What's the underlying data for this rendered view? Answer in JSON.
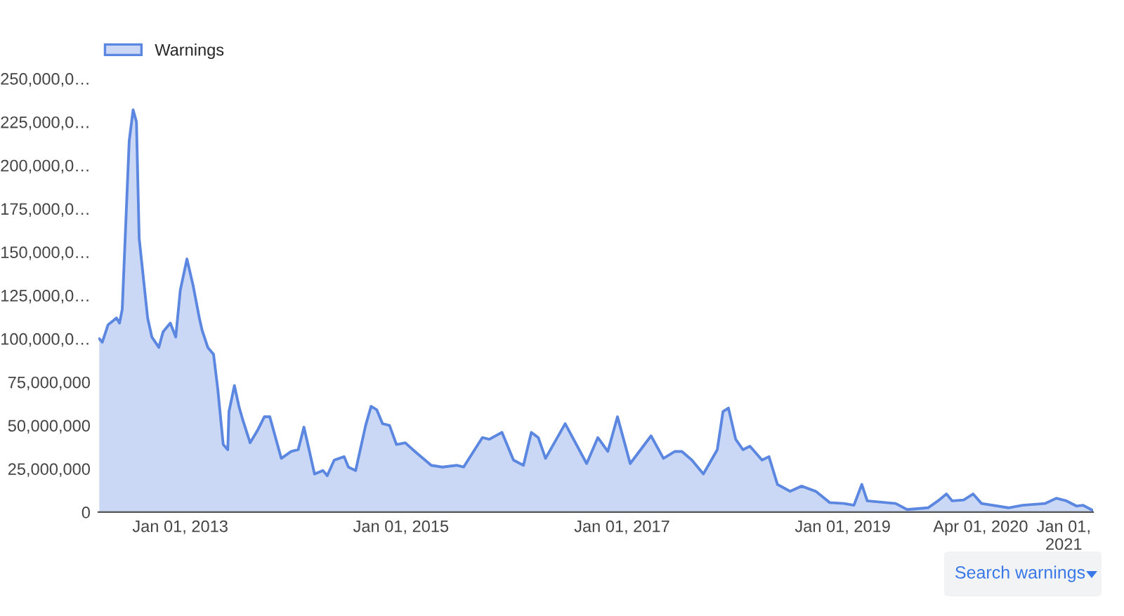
{
  "chart_data": {
    "type": "area",
    "x": [
      "2012-04-08",
      "2012-04-18",
      "2012-05-07",
      "2012-06-04",
      "2012-06-14",
      "2012-06-23",
      "2012-07-16",
      "2012-07-29",
      "2012-08-09",
      "2012-08-18",
      "2012-09-15",
      "2012-09-29",
      "2012-10-22",
      "2012-11-05",
      "2012-11-29",
      "2012-12-17",
      "2013-01-01",
      "2013-01-23",
      "2013-02-12",
      "2013-03-05",
      "2013-03-14",
      "2013-04-02",
      "2013-04-21",
      "2013-05-05",
      "2013-05-23",
      "2013-06-07",
      "2013-06-11",
      "2013-06-29",
      "2013-07-14",
      "2013-07-27",
      "2013-08-20",
      "2013-09-13",
      "2013-10-06",
      "2013-10-24",
      "2013-12-01",
      "2014-01-03",
      "2014-01-26",
      "2014-02-14",
      "2014-03-03",
      "2014-03-21",
      "2014-04-18",
      "2014-05-02",
      "2014-05-25",
      "2014-06-27",
      "2014-07-11",
      "2014-08-04",
      "2014-09-06",
      "2014-09-24",
      "2014-10-13",
      "2014-11-01",
      "2014-11-24",
      "2014-12-17",
      "2015-01-15",
      "2015-02-16",
      "2015-04-11",
      "2015-05-18",
      "2015-07-04",
      "2015-07-27",
      "2015-09-27",
      "2015-10-20",
      "2015-12-01",
      "2016-01-08",
      "2016-02-10",
      "2016-03-07",
      "2016-03-30",
      "2016-04-23",
      "2016-06-27",
      "2016-09-06",
      "2016-10-13",
      "2016-11-15",
      "2016-12-17",
      "2017-01-28",
      "2017-04-07",
      "2017-05-18",
      "2017-06-25",
      "2017-07-18",
      "2017-08-20",
      "2017-09-27",
      "2017-11-12",
      "2017-12-01",
      "2017-12-19",
      "2018-01-12",
      "2018-02-05",
      "2018-02-28",
      "2018-04-09",
      "2018-05-02",
      "2018-05-30",
      "2018-07-11",
      "2018-08-18",
      "2018-10-04",
      "2018-11-19",
      "2019-01-05",
      "2019-02-07",
      "2019-03-05",
      "2019-03-23",
      "2019-06-25",
      "2019-08-02",
      "2019-10-10",
      "2019-11-12",
      "2019-12-10",
      "2019-12-29",
      "2020-02-05",
      "2020-03-07",
      "2020-04-04",
      "2020-07-02",
      "2020-08-18",
      "2020-11-01",
      "2020-12-07",
      "2021-01-10",
      "2021-02-12",
      "2021-03-05",
      "2021-04-07"
    ],
    "series": [
      {
        "name": "Warnings",
        "color": "#5b87e0",
        "values": [
          100000000,
          98000000,
          108000000,
          112000000,
          109000000,
          117000000,
          214000000,
          232000000,
          225000000,
          158000000,
          112000000,
          101000000,
          95000000,
          104000000,
          109000000,
          101000000,
          128000000,
          146000000,
          131000000,
          112000000,
          105000000,
          95000000,
          91000000,
          71000000,
          39000000,
          36000000,
          58000000,
          73000000,
          61000000,
          53000000,
          40000000,
          47000000,
          55000000,
          55000000,
          31000000,
          35000000,
          36000000,
          49000000,
          36000000,
          22000000,
          24000000,
          21000000,
          30000000,
          32000000,
          26000000,
          24000000,
          50000000,
          61000000,
          59000000,
          51000000,
          50000000,
          39000000,
          40000000,
          35000000,
          27000000,
          26000000,
          27000000,
          26000000,
          43000000,
          42000000,
          46000000,
          30000000,
          27000000,
          46000000,
          43000000,
          31000000,
          51000000,
          28000000,
          43000000,
          35000000,
          55000000,
          28000000,
          44000000,
          31000000,
          35000000,
          35000000,
          30000000,
          22000000,
          36000000,
          58000000,
          60000000,
          42000000,
          36000000,
          38000000,
          30000000,
          32000000,
          16000000,
          12000000,
          15000000,
          12000000,
          5500000,
          5000000,
          4000000,
          16000000,
          6500000,
          5000000,
          1500000,
          2500000,
          6500000,
          10500000,
          6500000,
          7000000,
          10500000,
          5000000,
          2500000,
          4000000,
          5000000,
          8000000,
          6500000,
          3500000,
          4000000,
          1000000
        ]
      }
    ],
    "xlim": [
      "2012-04-05",
      "2021-04-08"
    ],
    "xticks": [
      {
        "value": "2013-01-01",
        "label": "Jan 01, 2013"
      },
      {
        "value": "2015-01-01",
        "label": "Jan 01, 2015"
      },
      {
        "value": "2017-01-01",
        "label": "Jan 01, 2017"
      },
      {
        "value": "2019-01-01",
        "label": "Jan 01, 2019"
      },
      {
        "value": "2020-04-01",
        "label": "Apr 01, 2020"
      },
      {
        "value": "2021-01-01",
        "label": "Jan 01,\n2021"
      }
    ],
    "ylim": [
      0,
      250000000
    ],
    "yticks": [
      0,
      {
        "value": 25000000,
        "label": "25,000,000"
      },
      {
        "value": 50000000,
        "label": "50,000,000"
      },
      {
        "value": 75000000,
        "label": "75,000,000"
      },
      {
        "value": 100000000,
        "label": "100,000,0…"
      },
      {
        "value": 125000000,
        "label": "125,000,0…"
      },
      {
        "value": 150000000,
        "label": "150,000,0…"
      },
      {
        "value": 175000000,
        "label": "175,000,0…"
      },
      {
        "value": 200000000,
        "label": "200,000,0…"
      },
      {
        "value": 225000000,
        "label": "225,000,0…"
      },
      {
        "value": 250000000,
        "label": "250,000,0…"
      }
    ],
    "grid": false,
    "legend": "top left",
    "annotations": [
      "Search warnings"
    ]
  }
}
